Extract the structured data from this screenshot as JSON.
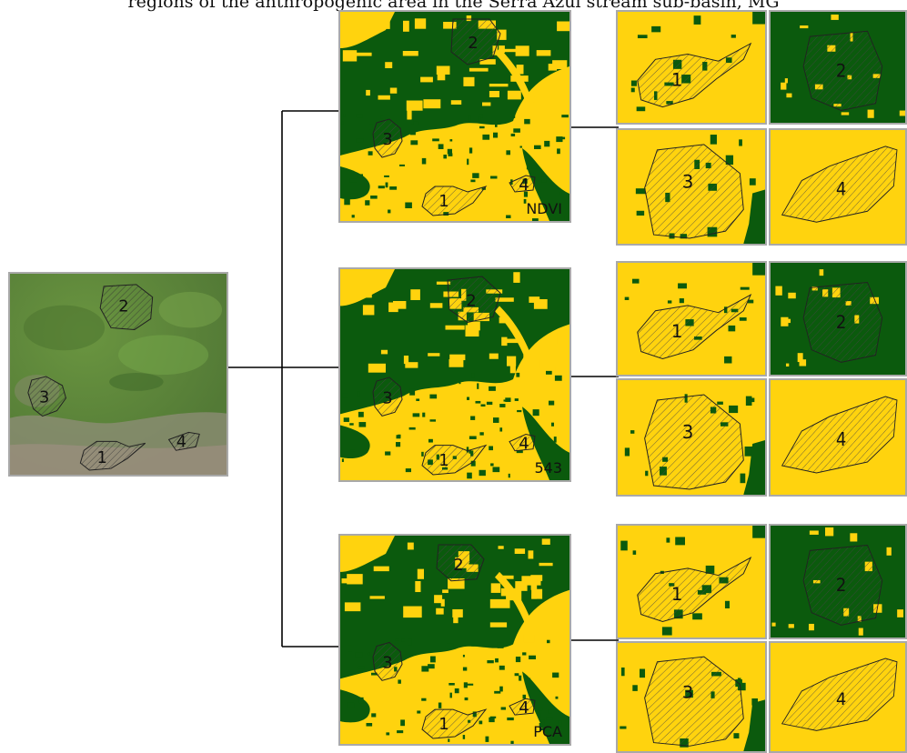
{
  "caption": "regions of the anthropogenic area in the Serra Azul stream sub-basin, MG",
  "colors": {
    "vegetation": "#0b5a0d",
    "anthropic": "#ffd30e",
    "frame": "#a9a9a9",
    "line": "#000000"
  },
  "source_image": {
    "region_labels": [
      "1",
      "2",
      "3",
      "4"
    ]
  },
  "methods": [
    {
      "label": "NDVI"
    },
    {
      "label": "543"
    },
    {
      "label": "PCA"
    }
  ],
  "zoom_labels": [
    "1",
    "2",
    "3",
    "4"
  ]
}
